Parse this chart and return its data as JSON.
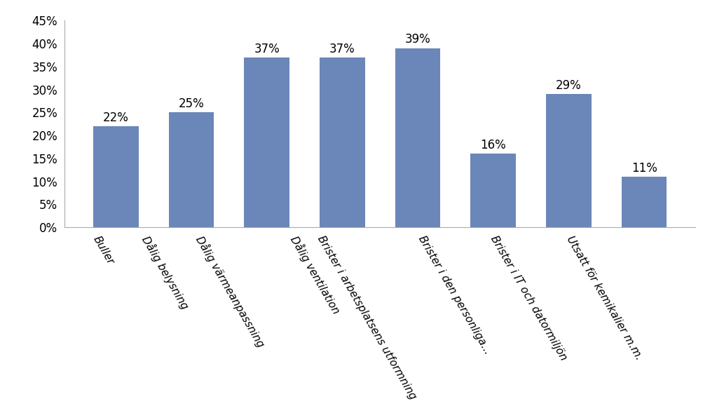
{
  "categories": [
    "Buller",
    "Dålig belysning",
    "Dålig värmeanpassning",
    "Dålig ventilation",
    "Brister i arbetsplatsens utformning",
    "Brister i den personliga...",
    "Brister i IT och datormiljön",
    "Utsatt för kemikalier m.m."
  ],
  "values": [
    0.22,
    0.25,
    0.37,
    0.37,
    0.39,
    0.16,
    0.29,
    0.11
  ],
  "labels": [
    "22%",
    "25%",
    "37%",
    "37%",
    "39%",
    "16%",
    "29%",
    "11%"
  ],
  "bar_color": "#6b86b8",
  "ylim": [
    0,
    0.45
  ],
  "yticks": [
    0.0,
    0.05,
    0.1,
    0.15,
    0.2,
    0.25,
    0.3,
    0.35,
    0.4,
    0.45
  ],
  "ytick_labels": [
    "0%",
    "5%",
    "10%",
    "15%",
    "20%",
    "25%",
    "30%",
    "35%",
    "40%",
    "45%"
  ],
  "background_color": "#ffffff",
  "label_fontsize": 12,
  "tick_fontsize": 12,
  "xtick_fontsize": 11,
  "bar_width": 0.6
}
